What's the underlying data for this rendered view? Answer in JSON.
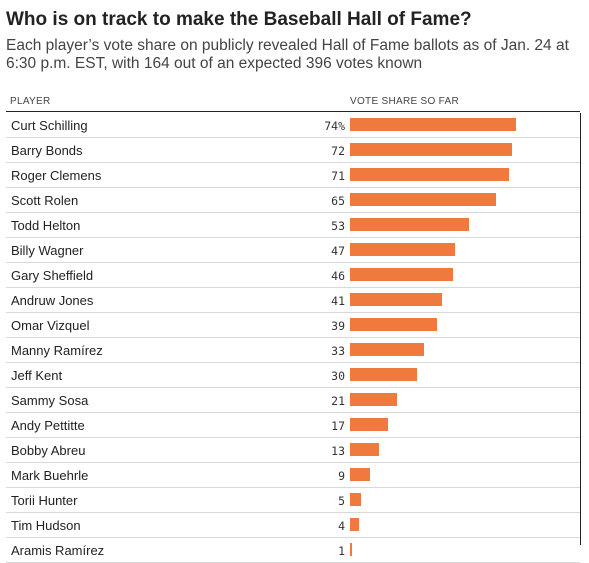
{
  "header": {
    "title": "Who is on track to make the Baseball Hall of Fame?",
    "subtitle": "Each player’s vote share on publicly revealed Hall of Fame ballots as of Jan. 24 at 6:30 p.m. EST, with 164 out of an expected 396 votes known"
  },
  "columns": {
    "player": "PLAYER",
    "vote": "VOTE SHARE SO FAR"
  },
  "colors": {
    "bar": "#f07a3e"
  },
  "chart_data": {
    "type": "bar",
    "orientation": "horizontal",
    "value_unit": "%",
    "xlim": [
      0,
      74
    ],
    "categories": [
      "Curt Schilling",
      "Barry Bonds",
      "Roger Clemens",
      "Scott Rolen",
      "Todd Helton",
      "Billy Wagner",
      "Gary Sheffield",
      "Andruw Jones",
      "Omar Vizquel",
      "Manny Ramírez",
      "Jeff Kent",
      "Sammy Sosa",
      "Andy Pettitte",
      "Bobby Abreu",
      "Mark Buehrle",
      "Torii Hunter",
      "Tim Hudson",
      "Aramis Ramírez"
    ],
    "values": [
      74,
      72,
      71,
      65,
      53,
      47,
      46,
      41,
      39,
      33,
      30,
      21,
      17,
      13,
      9,
      5,
      4,
      1
    ],
    "labels": [
      "74%",
      "72",
      "71",
      "65",
      "53",
      "47",
      "46",
      "41",
      "39",
      "33",
      "30",
      "21",
      "17",
      "13",
      "9",
      "5",
      "4",
      "1"
    ]
  }
}
